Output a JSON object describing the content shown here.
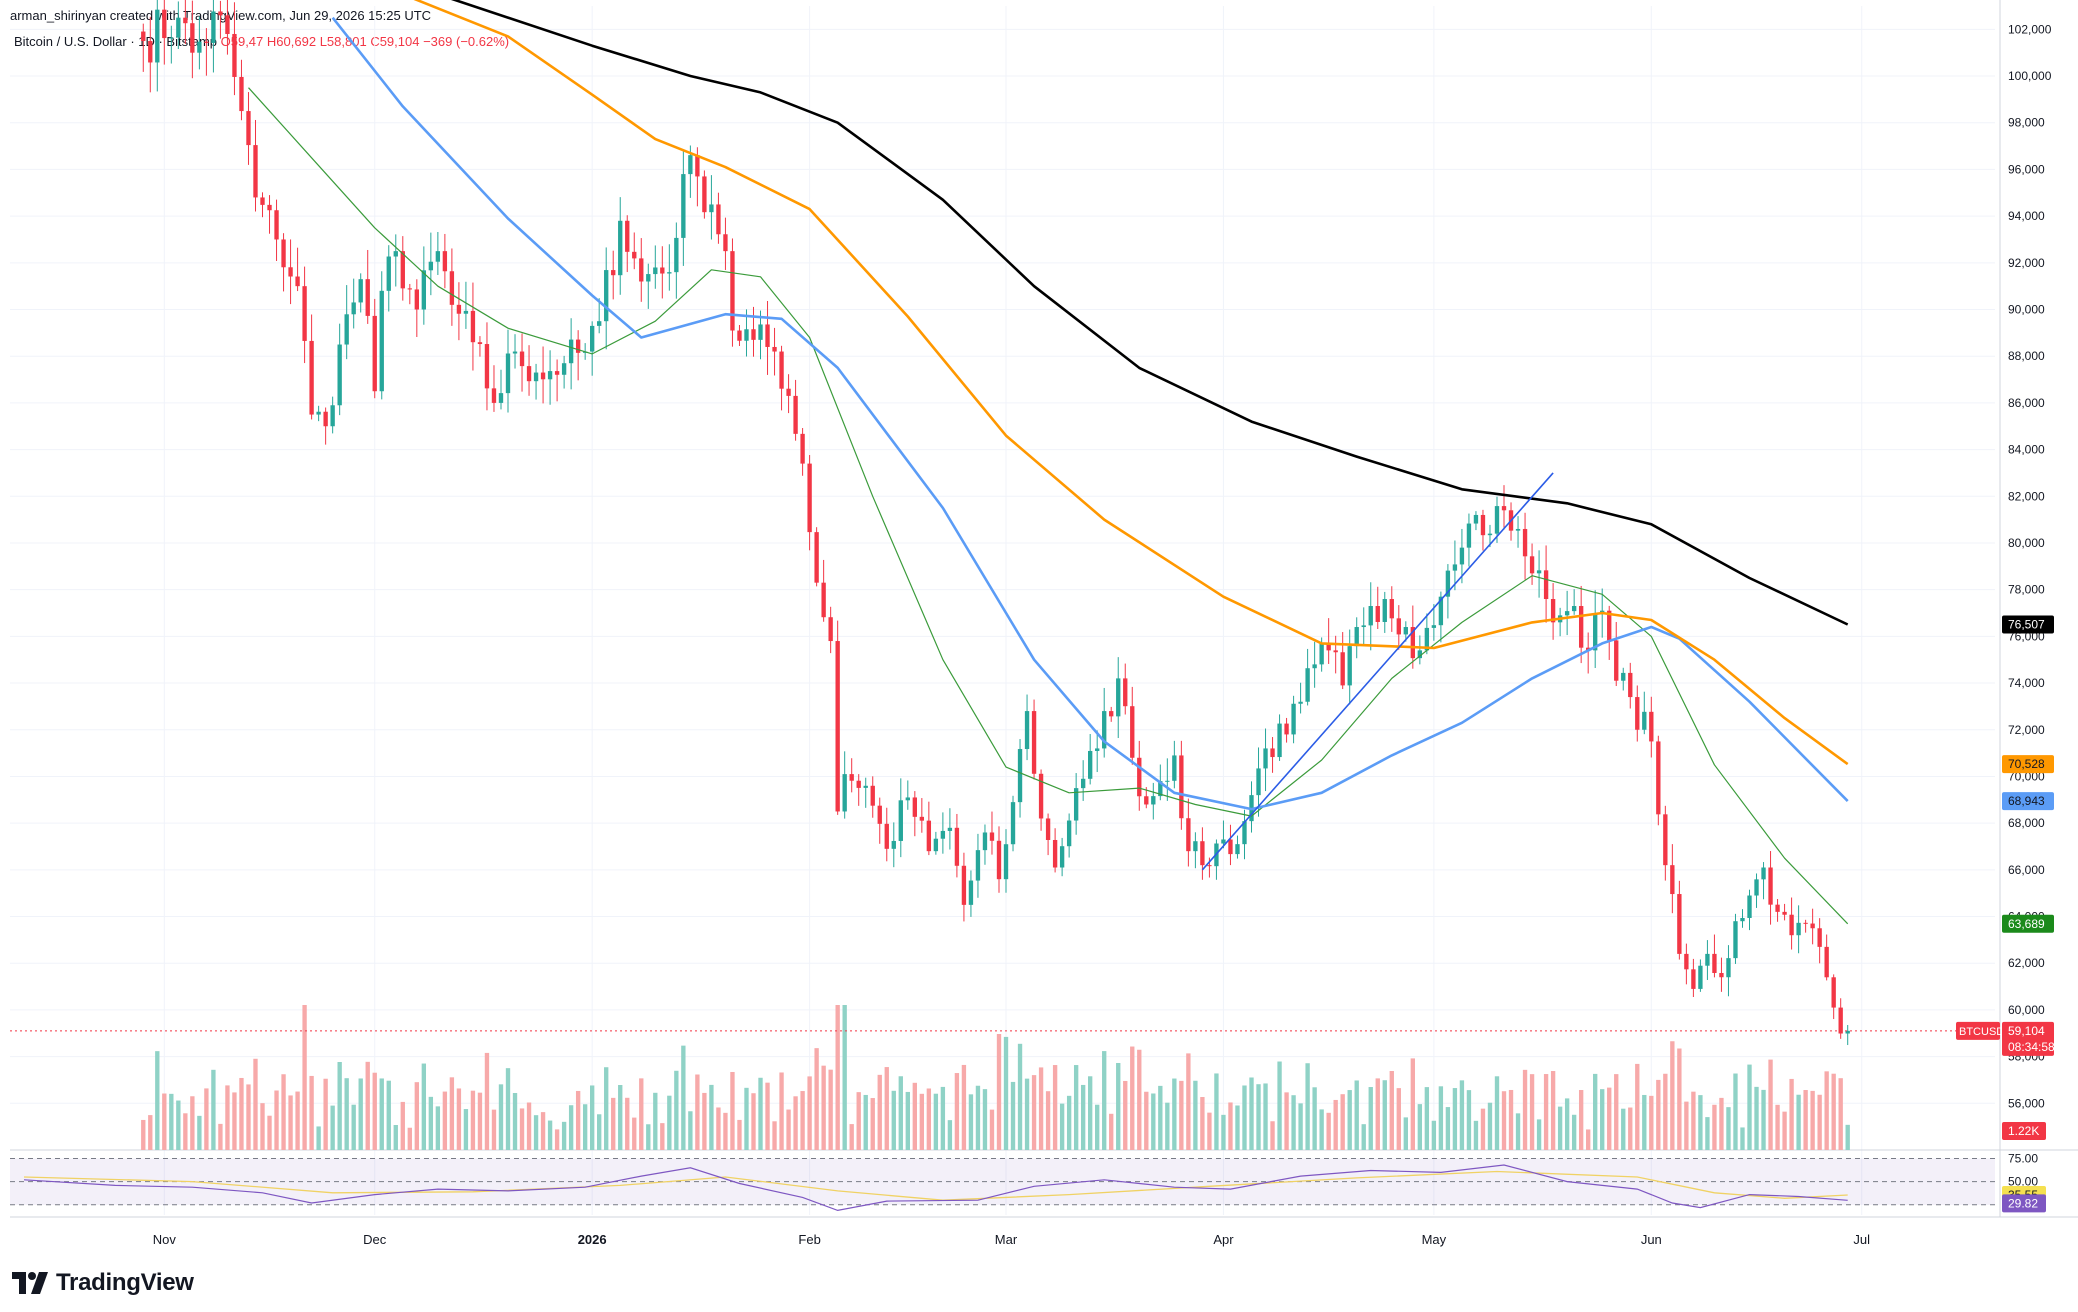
{
  "header": {
    "attribution": "arman_shirinyan created with TradingView.com, Jun 29, 2026 15:25 UTC",
    "symbol_description": "Bitcoin / U.S. Dollar · 1D · Bitstamp",
    "ohlc": {
      "open_label": "O59,47",
      "high_label": "H60,692",
      "low_label": "L58,801",
      "close_label": "C59,104",
      "change_label": "−369 (−0.62%)"
    }
  },
  "price_badges": {
    "ma200": {
      "text": "76,507",
      "value": 76507,
      "color": "#000000"
    },
    "ma100": {
      "text": "70,528",
      "value": 70528,
      "color": "#ff9800"
    },
    "ma50": {
      "text": "68,943",
      "value": 68943,
      "color": "#5b9cf6"
    },
    "ma20": {
      "text": "63,689",
      "value": 63689,
      "color": "#1b8a1b"
    },
    "symbol": "BTCUSD",
    "last": {
      "text": "59,104",
      "value": 59104,
      "color": "#f23645"
    },
    "countdown": "08:34:58",
    "volume": {
      "text": "1.22K",
      "color": "#f23645"
    },
    "rsi_ma": {
      "text": "35.55",
      "value": 35.55,
      "color": "#f5e050"
    },
    "rsi": {
      "text": "29.82",
      "value": 29.82,
      "color": "#7e57c2"
    }
  },
  "rsi_axis": [
    {
      "text": "75.00",
      "value": 75
    },
    {
      "text": "50.00",
      "value": 50
    },
    {
      "text": "25.00",
      "value": 25
    }
  ],
  "logo_text": "TradingView",
  "colors": {
    "up": "#26a69a",
    "down": "#f23645",
    "vol_up": "#8fd2c6",
    "vol_down": "#f7a9a9",
    "ma20": "#3b9b3b",
    "ma50": "#5b9cf6",
    "ma100": "#ff9800",
    "ma200": "#000000",
    "trendline": "#2b5ce6",
    "rsi": "#7e57c2",
    "rsi_ma": "#f0d264"
  },
  "chart_data": {
    "type": "candlestick",
    "title": "Bitcoin / U.S. Dollar · 1D · Bitstamp",
    "ylim": [
      54000,
      103000
    ],
    "y_ticks": [
      56000,
      58000,
      60000,
      62000,
      64000,
      66000,
      68000,
      70000,
      72000,
      74000,
      76000,
      78000,
      80000,
      82000,
      84000,
      86000,
      88000,
      90000,
      92000,
      94000,
      96000,
      98000,
      100000,
      102000
    ],
    "y_tick_labels": [
      "56,000",
      "58,000",
      "60,000",
      "62,000",
      "64,000",
      "66,000",
      "68,000",
      "70,000",
      "72,000",
      "74,000",
      "76,000",
      "78,000",
      "80,000",
      "82,000",
      "84,000",
      "86,000",
      "88,000",
      "90,000",
      "92,000",
      "94,000",
      "96,000",
      "98,000",
      "100,000",
      "102,000"
    ],
    "x_ticks": [
      {
        "label": "Nov",
        "date": "2025-11-01"
      },
      {
        "label": "Dec",
        "date": "2025-12-01"
      },
      {
        "label": "2026",
        "date": "2026-01-01"
      },
      {
        "label": "Feb",
        "date": "2026-02-01"
      },
      {
        "label": "Mar",
        "date": "2026-03-01"
      },
      {
        "label": "Apr",
        "date": "2026-04-01"
      },
      {
        "label": "May",
        "date": "2026-05-01"
      },
      {
        "label": "Jun",
        "date": "2026-06-01"
      },
      {
        "label": "Jul",
        "date": "2026-07-01"
      }
    ],
    "xlim": [
      "2025-10-10",
      "2026-07-20"
    ],
    "close_anchors": [
      [
        "2025-10-29",
        101500
      ],
      [
        "2025-11-03",
        102500
      ],
      [
        "2025-11-05",
        101000
      ],
      [
        "2025-11-09",
        102600
      ],
      [
        "2025-11-12",
        98500
      ],
      [
        "2025-11-14",
        94800
      ],
      [
        "2025-11-17",
        93000
      ],
      [
        "2025-11-20",
        91000
      ],
      [
        "2025-11-22",
        85500
      ],
      [
        "2025-11-24",
        85000
      ],
      [
        "2025-11-26",
        88500
      ],
      [
        "2025-11-29",
        91300
      ],
      [
        "2025-12-01",
        86500
      ],
      [
        "2025-12-02",
        90800
      ],
      [
        "2025-12-04",
        92500
      ],
      [
        "2025-12-07",
        90000
      ],
      [
        "2025-12-10",
        92500
      ],
      [
        "2025-12-12",
        90200
      ],
      [
        "2025-12-15",
        88600
      ],
      [
        "2025-12-18",
        86000
      ],
      [
        "2025-12-21",
        88200
      ],
      [
        "2025-12-24",
        87300
      ],
      [
        "2025-12-28",
        87700
      ],
      [
        "2025-12-31",
        88200
      ],
      [
        "2026-01-02",
        89500
      ],
      [
        "2026-01-05",
        93800
      ],
      [
        "2026-01-08",
        91200
      ],
      [
        "2026-01-10",
        91800
      ],
      [
        "2026-01-12",
        91600
      ],
      [
        "2026-01-14",
        95800
      ],
      [
        "2026-01-16",
        95700
      ],
      [
        "2026-01-18",
        94500
      ],
      [
        "2026-01-20",
        92500
      ],
      [
        "2026-01-21",
        89100
      ],
      [
        "2026-01-24",
        88700
      ],
      [
        "2026-01-27",
        88200
      ],
      [
        "2026-01-29",
        86300
      ],
      [
        "2026-01-31",
        83400
      ],
      [
        "2026-02-02",
        78300
      ],
      [
        "2026-02-04",
        75800
      ],
      [
        "2026-02-05",
        68500
      ],
      [
        "2026-02-06",
        70100
      ],
      [
        "2026-02-09",
        69600
      ],
      [
        "2026-02-12",
        66900
      ],
      [
        "2026-02-15",
        69100
      ],
      [
        "2026-02-18",
        66800
      ],
      [
        "2026-02-21",
        67800
      ],
      [
        "2026-02-23",
        64500
      ],
      [
        "2026-02-26",
        67600
      ],
      [
        "2026-02-28",
        65600
      ],
      [
        "2026-03-02",
        68900
      ],
      [
        "2026-03-04",
        72800
      ],
      [
        "2026-03-06",
        68200
      ],
      [
        "2026-03-08",
        66100
      ],
      [
        "2026-03-11",
        69500
      ],
      [
        "2026-03-14",
        71200
      ],
      [
        "2026-03-17",
        74200
      ],
      [
        "2026-03-19",
        70800
      ],
      [
        "2026-03-21",
        68800
      ],
      [
        "2026-03-23",
        69800
      ],
      [
        "2026-03-25",
        70900
      ],
      [
        "2026-03-27",
        66800
      ],
      [
        "2026-03-29",
        66200
      ],
      [
        "2026-04-01",
        67300
      ],
      [
        "2026-04-03",
        67100
      ],
      [
        "2026-04-05",
        69200
      ],
      [
        "2026-04-07",
        71200
      ],
      [
        "2026-04-10",
        71800
      ],
      [
        "2026-04-12",
        73200
      ],
      [
        "2026-04-14",
        74800
      ],
      [
        "2026-04-16",
        75400
      ],
      [
        "2026-04-18",
        73900
      ],
      [
        "2026-04-20",
        76400
      ],
      [
        "2026-04-22",
        77300
      ],
      [
        "2026-04-24",
        77600
      ],
      [
        "2026-04-27",
        76400
      ],
      [
        "2026-04-29",
        75400
      ],
      [
        "2026-05-02",
        77700
      ],
      [
        "2026-05-05",
        79800
      ],
      [
        "2026-05-07",
        81200
      ],
      [
        "2026-05-09",
        80400
      ],
      [
        "2026-05-11",
        81400
      ],
      [
        "2026-05-13",
        80600
      ],
      [
        "2026-05-15",
        78700
      ],
      [
        "2026-05-17",
        77600
      ],
      [
        "2026-05-19",
        76900
      ],
      [
        "2026-05-21",
        77300
      ],
      [
        "2026-05-23",
        75400
      ],
      [
        "2026-05-25",
        77100
      ],
      [
        "2026-05-27",
        74100
      ],
      [
        "2026-05-29",
        73400
      ],
      [
        "2026-06-01",
        71500
      ],
      [
        "2026-06-03",
        66200
      ],
      [
        "2026-06-05",
        62400
      ],
      [
        "2026-06-07",
        60900
      ],
      [
        "2026-06-09",
        62400
      ],
      [
        "2026-06-11",
        61400
      ],
      [
        "2026-06-13",
        63800
      ],
      [
        "2026-06-15",
        64900
      ],
      [
        "2026-06-17",
        66100
      ],
      [
        "2026-06-19",
        64200
      ],
      [
        "2026-06-21",
        63200
      ],
      [
        "2026-06-23",
        63700
      ],
      [
        "2026-06-25",
        62700
      ],
      [
        "2026-06-27",
        60100
      ],
      [
        "2026-06-29",
        59104
      ]
    ],
    "moving_averages": [
      {
        "name": "MA 20",
        "color": "#3b9b3b",
        "points": [
          [
            "2025-11-13",
            99500
          ],
          [
            "2025-11-22",
            96500
          ],
          [
            "2025-12-01",
            93500
          ],
          [
            "2025-12-10",
            91000
          ],
          [
            "2025-12-20",
            89200
          ],
          [
            "2026-01-01",
            88100
          ],
          [
            "2026-01-10",
            89500
          ],
          [
            "2026-01-18",
            91700
          ],
          [
            "2026-01-25",
            91400
          ],
          [
            "2026-02-01",
            88800
          ],
          [
            "2026-02-10",
            82000
          ],
          [
            "2026-02-20",
            75000
          ],
          [
            "2026-03-01",
            70400
          ],
          [
            "2026-03-10",
            69300
          ],
          [
            "2026-03-20",
            69500
          ],
          [
            "2026-03-28",
            68800
          ],
          [
            "2026-04-05",
            68300
          ],
          [
            "2026-04-15",
            70700
          ],
          [
            "2026-04-25",
            74200
          ],
          [
            "2026-05-05",
            76600
          ],
          [
            "2026-05-15",
            78600
          ],
          [
            "2026-05-25",
            77800
          ],
          [
            "2026-06-01",
            76000
          ],
          [
            "2026-06-10",
            70500
          ],
          [
            "2026-06-20",
            66500
          ],
          [
            "2026-06-29",
            63689
          ]
        ]
      },
      {
        "name": "MA 50",
        "color": "#5b9cf6",
        "points": [
          [
            "2025-11-25",
            102500
          ],
          [
            "2025-12-05",
            98700
          ],
          [
            "2025-12-20",
            93900
          ],
          [
            "2026-01-01",
            90600
          ],
          [
            "2026-01-08",
            88800
          ],
          [
            "2026-01-20",
            89800
          ],
          [
            "2026-01-28",
            89600
          ],
          [
            "2026-02-05",
            87500
          ],
          [
            "2026-02-20",
            81500
          ],
          [
            "2026-03-05",
            75000
          ],
          [
            "2026-03-15",
            71500
          ],
          [
            "2026-03-25",
            69300
          ],
          [
            "2026-04-05",
            68600
          ],
          [
            "2026-04-15",
            69300
          ],
          [
            "2026-04-25",
            70900
          ],
          [
            "2026-05-05",
            72300
          ],
          [
            "2026-05-15",
            74200
          ],
          [
            "2026-05-25",
            75700
          ],
          [
            "2026-06-01",
            76400
          ],
          [
            "2026-06-05",
            75900
          ],
          [
            "2026-06-15",
            73200
          ],
          [
            "2026-06-29",
            68943
          ]
        ]
      },
      {
        "name": "MA 100",
        "color": "#ff9800",
        "points": [
          [
            "2025-12-05",
            103500
          ],
          [
            "2025-12-20",
            101700
          ],
          [
            "2026-01-01",
            99200
          ],
          [
            "2026-01-10",
            97300
          ],
          [
            "2026-01-20",
            96100
          ],
          [
            "2026-02-01",
            94300
          ],
          [
            "2026-02-15",
            89700
          ],
          [
            "2026-03-01",
            84600
          ],
          [
            "2026-03-15",
            81000
          ],
          [
            "2026-04-01",
            77700
          ],
          [
            "2026-04-15",
            75700
          ],
          [
            "2026-05-01",
            75500
          ],
          [
            "2026-05-15",
            76600
          ],
          [
            "2026-05-25",
            77000
          ],
          [
            "2026-06-01",
            76700
          ],
          [
            "2026-06-10",
            75000
          ],
          [
            "2026-06-20",
            72500
          ],
          [
            "2026-06-29",
            70528
          ]
        ]
      },
      {
        "name": "MA 200",
        "color": "#000000",
        "points": [
          [
            "2025-12-10",
            103500
          ],
          [
            "2026-01-01",
            101300
          ],
          [
            "2026-01-15",
            100000
          ],
          [
            "2026-01-25",
            99300
          ],
          [
            "2026-02-05",
            98000
          ],
          [
            "2026-02-20",
            94700
          ],
          [
            "2026-03-05",
            91000
          ],
          [
            "2026-03-20",
            87500
          ],
          [
            "2026-04-05",
            85200
          ],
          [
            "2026-04-20",
            83700
          ],
          [
            "2026-05-05",
            82300
          ],
          [
            "2026-05-20",
            81700
          ],
          [
            "2026-06-01",
            80800
          ],
          [
            "2026-06-15",
            78500
          ],
          [
            "2026-06-29",
            76507
          ]
        ]
      }
    ],
    "trendline": {
      "points": [
        [
          "2026-03-29",
          66000
        ],
        [
          "2026-05-18",
          83000
        ]
      ]
    },
    "volume": {
      "last_label": "1.22K",
      "spikes": [
        [
          "2025-11-21",
          1.0
        ],
        [
          "2026-02-05",
          1.0
        ],
        [
          "2026-02-06",
          1.0
        ],
        [
          "2026-02-28",
          0.8
        ],
        [
          "2026-03-01",
          0.78
        ],
        [
          "2026-06-04",
          0.75
        ],
        [
          "2026-06-05",
          0.7
        ]
      ]
    },
    "rsi": {
      "ylim": [
        14,
        82
      ],
      "levels": [
        75,
        50,
        25
      ],
      "last": 29.82,
      "ma_last": 35.55,
      "points": [
        [
          "2025-10-12",
          52
        ],
        [
          "2025-10-25",
          46
        ],
        [
          "2025-11-05",
          44
        ],
        [
          "2025-11-15",
          38
        ],
        [
          "2025-11-22",
          27
        ],
        [
          "2025-12-01",
          36
        ],
        [
          "2025-12-10",
          42
        ],
        [
          "2025-12-20",
          40
        ],
        [
          "2025-12-31",
          44
        ],
        [
          "2026-01-08",
          56
        ],
        [
          "2026-01-15",
          65
        ],
        [
          "2026-01-22",
          48
        ],
        [
          "2026-01-31",
          33
        ],
        [
          "2026-02-05",
          19
        ],
        [
          "2026-02-12",
          29
        ],
        [
          "2026-02-25",
          30
        ],
        [
          "2026-03-05",
          45
        ],
        [
          "2026-03-15",
          52
        ],
        [
          "2026-03-25",
          44
        ],
        [
          "2026-04-02",
          42
        ],
        [
          "2026-04-12",
          56
        ],
        [
          "2026-04-22",
          62
        ],
        [
          "2026-05-02",
          60
        ],
        [
          "2026-05-11",
          68
        ],
        [
          "2026-05-20",
          50
        ],
        [
          "2026-05-30",
          42
        ],
        [
          "2026-06-04",
          27
        ],
        [
          "2026-06-08",
          22
        ],
        [
          "2026-06-15",
          36
        ],
        [
          "2026-06-22",
          34
        ],
        [
          "2026-06-29",
          29.82
        ]
      ],
      "ma_points": [
        [
          "2025-10-12",
          55
        ],
        [
          "2025-11-05",
          50
        ],
        [
          "2025-11-25",
          38
        ],
        [
          "2025-12-15",
          39
        ],
        [
          "2026-01-05",
          46
        ],
        [
          "2026-01-20",
          55
        ],
        [
          "2026-02-05",
          40
        ],
        [
          "2026-02-20",
          30
        ],
        [
          "2026-03-10",
          36
        ],
        [
          "2026-03-30",
          45
        ],
        [
          "2026-04-20",
          54
        ],
        [
          "2026-05-10",
          61
        ],
        [
          "2026-05-30",
          55
        ],
        [
          "2026-06-10",
          38
        ],
        [
          "2026-06-20",
          32
        ],
        [
          "2026-06-29",
          35.55
        ]
      ]
    }
  }
}
